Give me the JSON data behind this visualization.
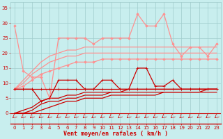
{
  "x": [
    0,
    1,
    2,
    3,
    4,
    5,
    6,
    7,
    8,
    9,
    10,
    11,
    12,
    13,
    14,
    15,
    16,
    17,
    18,
    19,
    20,
    21,
    22,
    23
  ],
  "series": [
    {
      "name": "pink_rafales_top",
      "y": [
        29,
        14,
        12,
        12,
        5,
        25,
        25,
        25,
        25,
        23,
        25,
        25,
        25,
        25,
        33,
        29,
        29,
        33,
        23,
        19,
        22,
        22,
        19,
        23
      ],
      "color": "#ff9090",
      "marker": "D",
      "markersize": 1.8,
      "linewidth": 0.9,
      "linestyle": "-",
      "zorder": 4
    },
    {
      "name": "pink_trend1",
      "y": [
        8,
        11,
        14,
        17,
        19,
        20,
        21,
        21,
        22,
        22,
        22,
        22,
        22,
        22,
        22,
        22,
        22,
        22,
        22,
        22,
        22,
        22,
        22,
        22
      ],
      "color": "#ff9090",
      "marker": null,
      "markersize": 0,
      "linewidth": 0.9,
      "linestyle": "-",
      "zorder": 3
    },
    {
      "name": "pink_trend2",
      "y": [
        8,
        10,
        13,
        15,
        17,
        18,
        19,
        19,
        20,
        20,
        20,
        20,
        20,
        20,
        20,
        20,
        20,
        20,
        20,
        20,
        20,
        20,
        20,
        20
      ],
      "color": "#ff9090",
      "marker": null,
      "markersize": 0,
      "linewidth": 0.9,
      "linestyle": "-",
      "zorder": 3
    },
    {
      "name": "pink_trend3_with_marker",
      "y": [
        8,
        9,
        11,
        13,
        14,
        15,
        16,
        17,
        17,
        17,
        18,
        18,
        18,
        18,
        18,
        18,
        18,
        18,
        18,
        18,
        18,
        18,
        18,
        18
      ],
      "color": "#ff9090",
      "marker": "D",
      "markersize": 1.8,
      "linewidth": 0.9,
      "linestyle": "-",
      "zorder": 3
    },
    {
      "name": "dark_red_spiky",
      "y": [
        8,
        8,
        8,
        4,
        5,
        11,
        11,
        11,
        8,
        8,
        11,
        11,
        8,
        8,
        15,
        15,
        9,
        9,
        11,
        8,
        8,
        8,
        8,
        8
      ],
      "color": "#cc0000",
      "marker": "+",
      "markersize": 3.5,
      "linewidth": 0.9,
      "linestyle": "-",
      "zorder": 5
    },
    {
      "name": "dark_red_flat",
      "y": [
        8,
        8,
        8,
        8,
        8,
        8,
        8,
        8,
        8,
        8,
        8,
        8,
        8,
        8,
        8,
        8,
        8,
        8,
        8,
        8,
        8,
        8,
        8,
        8
      ],
      "color": "#cc0000",
      "marker": "+",
      "markersize": 3.5,
      "linewidth": 0.9,
      "linestyle": "-",
      "zorder": 5
    },
    {
      "name": "dark_red_lower_trend1",
      "y": [
        0,
        1,
        2,
        4,
        5,
        5,
        6,
        6,
        7,
        7,
        7,
        7,
        7,
        8,
        8,
        8,
        8,
        8,
        8,
        8,
        8,
        8,
        8,
        8
      ],
      "color": "#cc0000",
      "marker": null,
      "markersize": 0,
      "linewidth": 0.9,
      "linestyle": "-",
      "zorder": 3
    },
    {
      "name": "dark_red_lower_trend2",
      "y": [
        0,
        0,
        1,
        3,
        4,
        4,
        5,
        5,
        6,
        6,
        6,
        7,
        7,
        7,
        7,
        7,
        7,
        7,
        7,
        7,
        7,
        7,
        8,
        8
      ],
      "color": "#cc0000",
      "marker": null,
      "markersize": 0,
      "linewidth": 0.9,
      "linestyle": "-",
      "zorder": 3
    },
    {
      "name": "dark_red_lower_trend3",
      "y": [
        0,
        0,
        0,
        1,
        2,
        3,
        4,
        4,
        5,
        5,
        5,
        6,
        6,
        6,
        6,
        6,
        6,
        7,
        7,
        7,
        7,
        7,
        7,
        7
      ],
      "color": "#cc0000",
      "marker": null,
      "markersize": 0,
      "linewidth": 0.9,
      "linestyle": "-",
      "zorder": 3
    }
  ],
  "xlabel": "Vent moyen/en rafales ( km/h )",
  "xlim": [
    -0.5,
    23.5
  ],
  "ylim": [
    -3.5,
    37
  ],
  "yticks": [
    0,
    5,
    10,
    15,
    20,
    25,
    30,
    35
  ],
  "xticks": [
    0,
    1,
    2,
    3,
    4,
    5,
    6,
    7,
    8,
    9,
    10,
    11,
    12,
    13,
    14,
    15,
    16,
    17,
    18,
    19,
    20,
    21,
    22,
    23
  ],
  "bg_color": "#c8eeee",
  "grid_color": "#a0cccc",
  "tick_color": "#cc0000",
  "label_color": "#cc0000",
  "arrow_color": "#cc0000",
  "axis_line_color": "#cc0000"
}
